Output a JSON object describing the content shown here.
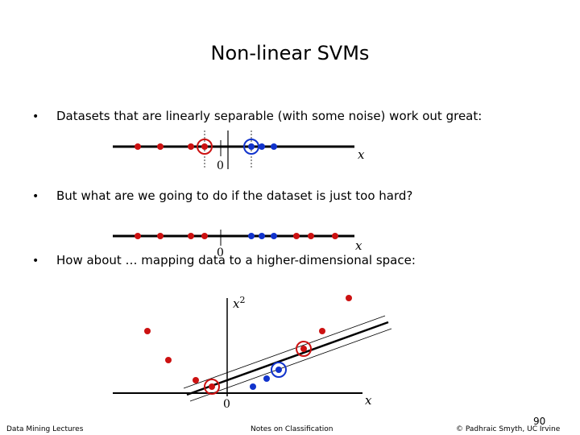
{
  "slide": {
    "title": "Non-linear SVMs",
    "bullets": [
      "Datasets that are linearly separable (with some noise) work out great:",
      "But what are we going to do if the dataset is just too hard?",
      "How about … mapping data to a higher-dimensional space:"
    ],
    "bullet_marker": "•"
  },
  "diagrams": {
    "axis1": {
      "x_label": "x",
      "origin_label": "0"
    },
    "axis2": {
      "x_label": "x",
      "origin_label": "0"
    },
    "plot3": {
      "x_label": "x",
      "y_label": "x",
      "y_sup": "2",
      "origin_label": "0"
    }
  },
  "colors": {
    "class_a": "#cc1111",
    "class_b": "#1133cc"
  },
  "footer": {
    "left": "Data Mining Lectures",
    "center": "Notes on Classification",
    "right": "© Padhraic Smyth, UC Irvine",
    "page_number": "90"
  }
}
